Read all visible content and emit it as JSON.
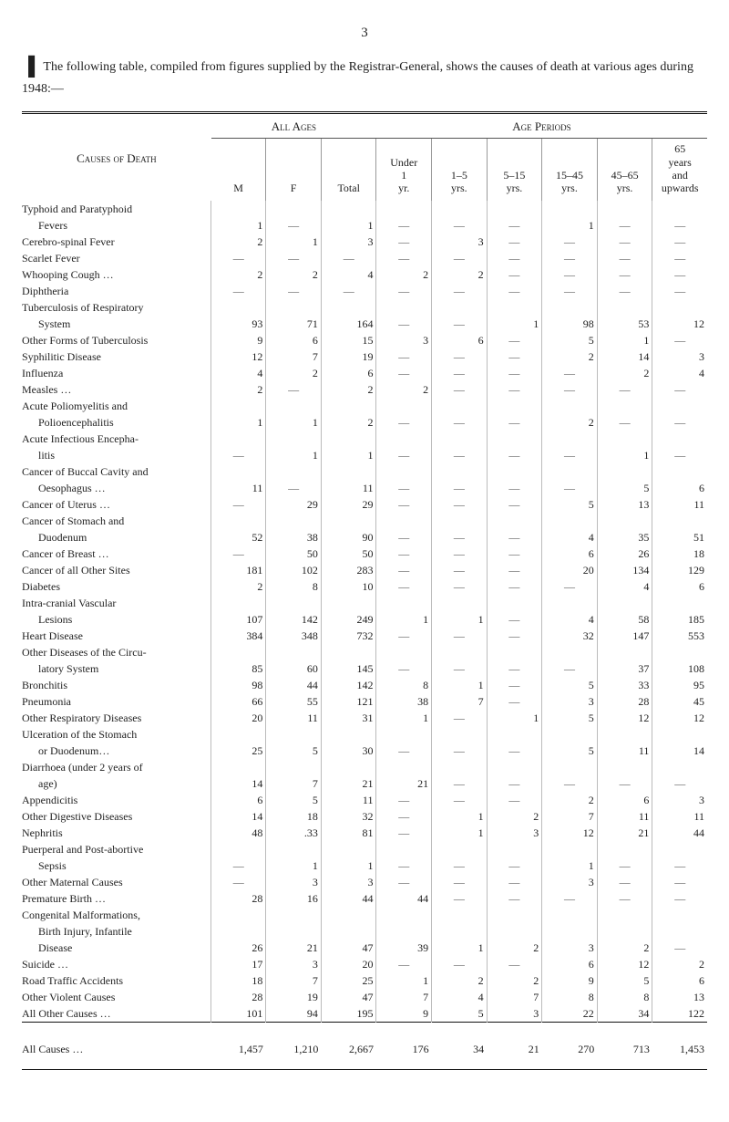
{
  "page_number": "3",
  "intro_text": "The following table, compiled from figures supplied by the Registrar-General, shows the causes of death at various ages during 1948:—",
  "headers": {
    "causes": "Causes of Death",
    "group_all": "All Ages",
    "group_periods": "Age Periods",
    "cols": [
      "M",
      "F",
      "Total",
      "Under 1 yr.",
      "1–5 yrs.",
      "5–15 yrs.",
      "15–45 yrs.",
      "45–65 yrs.",
      "65 years and upwards"
    ]
  },
  "rows": [
    {
      "label": "Typhoid and Paratyphoid",
      "indent": 0,
      "continue": true
    },
    {
      "label": "Fevers",
      "indent": 1,
      "v": [
        "1",
        "—",
        "1",
        "—",
        "—",
        "—",
        "1",
        "—",
        "—"
      ]
    },
    {
      "label": "Cerebro-spinal Fever",
      "indent": 0,
      "v": [
        "2",
        "1",
        "3",
        "—",
        "3",
        "—",
        "—",
        "—",
        "—"
      ]
    },
    {
      "label": "Scarlet Fever",
      "indent": 0,
      "v": [
        "—",
        "—",
        "—",
        "—",
        "—",
        "—",
        "—",
        "—",
        "—"
      ]
    },
    {
      "label": "Whooping Cough …",
      "indent": 0,
      "v": [
        "2",
        "2",
        "4",
        "2",
        "2",
        "—",
        "—",
        "—",
        "—"
      ]
    },
    {
      "label": "Diphtheria",
      "indent": 0,
      "v": [
        "—",
        "—",
        "—",
        "—",
        "—",
        "—",
        "—",
        "—",
        "—"
      ]
    },
    {
      "label": "Tuberculosis of Respiratory",
      "indent": 0,
      "continue": true
    },
    {
      "label": "System",
      "indent": 1,
      "v": [
        "93",
        "71",
        "164",
        "—",
        "—",
        "1",
        "98",
        "53",
        "12"
      ]
    },
    {
      "label": "Other Forms of Tuberculosis",
      "indent": 0,
      "v": [
        "9",
        "6",
        "15",
        "3",
        "6",
        "—",
        "5",
        "1",
        "—"
      ]
    },
    {
      "label": "Syphilitic Disease",
      "indent": 0,
      "v": [
        "12",
        "7",
        "19",
        "—",
        "—",
        "—",
        "2",
        "14",
        "3"
      ]
    },
    {
      "label": "Influenza",
      "indent": 0,
      "v": [
        "4",
        "2",
        "6",
        "—",
        "—",
        "—",
        "—",
        "2",
        "4"
      ]
    },
    {
      "label": "Measles …",
      "indent": 0,
      "v": [
        "2",
        "—",
        "2",
        "2",
        "—",
        "—",
        "—",
        "—",
        "—"
      ]
    },
    {
      "label": "Acute Poliomyelitis and",
      "indent": 0,
      "continue": true
    },
    {
      "label": "Polioencephalitis",
      "indent": 1,
      "v": [
        "1",
        "1",
        "2",
        "—",
        "—",
        "—",
        "2",
        "—",
        "—"
      ]
    },
    {
      "label": "Acute Infectious Encepha-",
      "indent": 0,
      "continue": true
    },
    {
      "label": "litis",
      "indent": 1,
      "v": [
        "—",
        "1",
        "1",
        "—",
        "—",
        "—",
        "—",
        "1",
        "—"
      ]
    },
    {
      "label": "Cancer of Buccal Cavity and",
      "indent": 0,
      "continue": true
    },
    {
      "label": "Oesophagus …",
      "indent": 1,
      "v": [
        "11",
        "—",
        "11",
        "—",
        "—",
        "—",
        "—",
        "5",
        "6"
      ]
    },
    {
      "label": "Cancer of Uterus …",
      "indent": 0,
      "v": [
        "—",
        "29",
        "29",
        "—",
        "—",
        "—",
        "5",
        "13",
        "11"
      ]
    },
    {
      "label": "Cancer of Stomach and",
      "indent": 0,
      "continue": true
    },
    {
      "label": "Duodenum",
      "indent": 1,
      "v": [
        "52",
        "38",
        "90",
        "—",
        "—",
        "—",
        "4",
        "35",
        "51"
      ]
    },
    {
      "label": "Cancer of Breast …",
      "indent": 0,
      "v": [
        "—",
        "50",
        "50",
        "—",
        "—",
        "—",
        "6",
        "26",
        "18"
      ]
    },
    {
      "label": "Cancer of all Other Sites",
      "indent": 0,
      "v": [
        "181",
        "102",
        "283",
        "—",
        "—",
        "—",
        "20",
        "134",
        "129"
      ]
    },
    {
      "label": "Diabetes",
      "indent": 0,
      "v": [
        "2",
        "8",
        "10",
        "—",
        "—",
        "—",
        "—",
        "4",
        "6"
      ]
    },
    {
      "label": "Intra-cranial Vascular",
      "indent": 0,
      "continue": true
    },
    {
      "label": "Lesions",
      "indent": 1,
      "v": [
        "107",
        "142",
        "249",
        "1",
        "1",
        "—",
        "4",
        "58",
        "185"
      ]
    },
    {
      "label": "Heart Disease",
      "indent": 0,
      "v": [
        "384",
        "348",
        "732",
        "—",
        "—",
        "—",
        "32",
        "147",
        "553"
      ]
    },
    {
      "label": "Other Diseases of the Circu-",
      "indent": 0,
      "continue": true
    },
    {
      "label": "latory System",
      "indent": 1,
      "v": [
        "85",
        "60",
        "145",
        "—",
        "—",
        "—",
        "—",
        "37",
        "108"
      ]
    },
    {
      "label": "Bronchitis",
      "indent": 0,
      "v": [
        "98",
        "44",
        "142",
        "8",
        "1",
        "—",
        "5",
        "33",
        "95"
      ]
    },
    {
      "label": "Pneumonia",
      "indent": 0,
      "v": [
        "66",
        "55",
        "121",
        "38",
        "7",
        "—",
        "3",
        "28",
        "45"
      ]
    },
    {
      "label": "Other Respiratory Diseases",
      "indent": 0,
      "v": [
        "20",
        "11",
        "31",
        "1",
        "—",
        "1",
        "5",
        "12",
        "12"
      ]
    },
    {
      "label": "Ulceration of the Stomach",
      "indent": 0,
      "continue": true
    },
    {
      "label": "or Duodenum…",
      "indent": 1,
      "v": [
        "25",
        "5",
        "30",
        "—",
        "—",
        "—",
        "5",
        "11",
        "14"
      ]
    },
    {
      "label": "Diarrhoea (under 2 years of",
      "indent": 0,
      "continue": true
    },
    {
      "label": "age)",
      "indent": 1,
      "v": [
        "14",
        "7",
        "21",
        "21",
        "—",
        "—",
        "—",
        "—",
        "—"
      ]
    },
    {
      "label": "Appendicitis",
      "indent": 0,
      "v": [
        "6",
        "5",
        "11",
        "—",
        "—",
        "—",
        "2",
        "6",
        "3"
      ]
    },
    {
      "label": "Other Digestive Diseases",
      "indent": 0,
      "v": [
        "14",
        "18",
        "32",
        "—",
        "1",
        "2",
        "7",
        "11",
        "11"
      ]
    },
    {
      "label": "Nephritis",
      "indent": 0,
      "v": [
        "48",
        ".33",
        "81",
        "—",
        "1",
        "3",
        "12",
        "21",
        "44"
      ]
    },
    {
      "label": "Puerperal and Post-abortive",
      "indent": 0,
      "continue": true
    },
    {
      "label": "Sepsis",
      "indent": 1,
      "v": [
        "—",
        "1",
        "1",
        "—",
        "—",
        "—",
        "1",
        "—",
        "—"
      ]
    },
    {
      "label": "Other Maternal Causes",
      "indent": 0,
      "v": [
        "—",
        "3",
        "3",
        "—",
        "—",
        "—",
        "3",
        "—",
        "—"
      ]
    },
    {
      "label": "Premature Birth …",
      "indent": 0,
      "v": [
        "28",
        "16",
        "44",
        "44",
        "—",
        "—",
        "—",
        "—",
        "—"
      ]
    },
    {
      "label": "Congenital Malformations,",
      "indent": 0,
      "continue": true
    },
    {
      "label": "Birth Injury, Infantile",
      "indent": 1,
      "continue": true
    },
    {
      "label": "Disease",
      "indent": 1,
      "v": [
        "26",
        "21",
        "47",
        "39",
        "1",
        "2",
        "3",
        "2",
        "—"
      ]
    },
    {
      "label": "Suicide …",
      "indent": 0,
      "v": [
        "17",
        "3",
        "20",
        "—",
        "—",
        "—",
        "6",
        "12",
        "2"
      ]
    },
    {
      "label": "Road Traffic Accidents",
      "indent": 0,
      "v": [
        "18",
        "7",
        "25",
        "1",
        "2",
        "2",
        "9",
        "5",
        "6"
      ]
    },
    {
      "label": "Other Violent Causes",
      "indent": 0,
      "v": [
        "28",
        "19",
        "47",
        "7",
        "4",
        "7",
        "8",
        "8",
        "13"
      ]
    },
    {
      "label": "All Other Causes …",
      "indent": 0,
      "v": [
        "101",
        "94",
        "195",
        "9",
        "5",
        "3",
        "22",
        "34",
        "122"
      ]
    }
  ],
  "total": {
    "label": "All Causes   …",
    "v": [
      "1,457",
      "1,210",
      "2,667",
      "176",
      "34",
      "21",
      "270",
      "713",
      "1,453"
    ]
  }
}
